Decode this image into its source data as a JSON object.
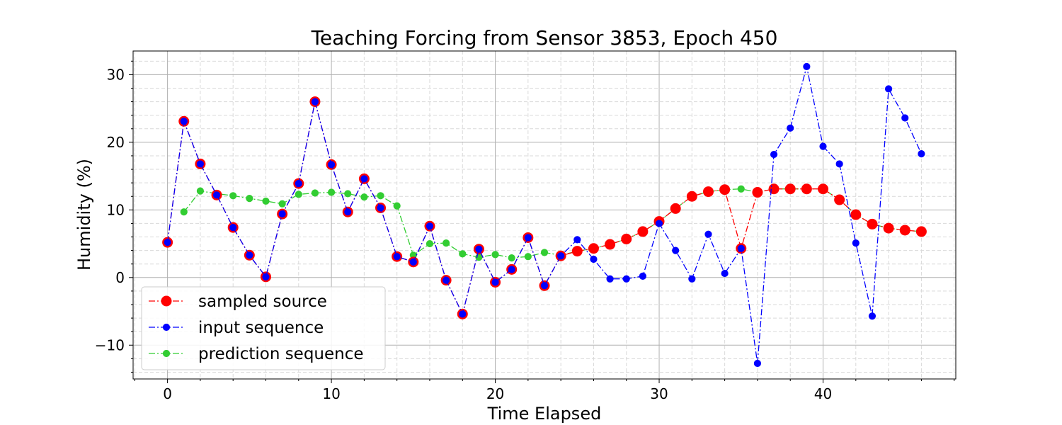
{
  "chart_data": {
    "type": "line",
    "title": "Teaching Forcing from Sensor 3853, Epoch 450",
    "xlabel": "Time Elapsed",
    "ylabel": "Humidity (%)",
    "xlim": [
      -2.1,
      48.1
    ],
    "ylim": [
      -15,
      33.5
    ],
    "xticks": [
      0,
      10,
      20,
      30,
      40
    ],
    "yticks": [
      -10,
      0,
      10,
      20,
      30
    ],
    "xtick_labels": [
      "0",
      "10",
      "20",
      "30",
      "40"
    ],
    "ytick_labels": [
      "−10",
      "0",
      "10",
      "20",
      "30"
    ],
    "grid": true,
    "minor_grid": true,
    "legend_position": "lower-left",
    "series": [
      {
        "name": "sampled source",
        "color": "#ff0000",
        "edge_color": "#ff0000",
        "marker_size": "large",
        "x": [
          0,
          1,
          2,
          3,
          4,
          5,
          6,
          7,
          8,
          9,
          10,
          11,
          12,
          13,
          14,
          15,
          16,
          17,
          18,
          19,
          20,
          21,
          22,
          23,
          24,
          25,
          26,
          27,
          28,
          29,
          30,
          31,
          32,
          33,
          34,
          35,
          36,
          37,
          38,
          39,
          40,
          41,
          42,
          43,
          44,
          45,
          46
        ],
        "values": [
          5.2,
          23.1,
          16.8,
          12.2,
          7.4,
          3.3,
          0.1,
          9.4,
          13.9,
          26.0,
          16.7,
          9.7,
          14.6,
          10.3,
          3.1,
          2.3,
          7.6,
          -0.4,
          -5.4,
          4.2,
          -0.7,
          1.2,
          5.9,
          -1.2,
          3.2,
          3.9,
          4.3,
          4.9,
          5.7,
          6.8,
          8.3,
          10.2,
          12.0,
          12.7,
          13.0,
          4.3,
          12.6,
          13.1,
          13.1,
          13.1,
          13.1,
          11.5,
          9.3,
          7.9,
          7.3,
          7.0,
          6.8
        ]
      },
      {
        "name": "input sequence",
        "color": "#0000ff",
        "x": [
          0,
          1,
          2,
          3,
          4,
          5,
          6,
          7,
          8,
          9,
          10,
          11,
          12,
          13,
          14,
          15,
          16,
          17,
          18,
          19,
          20,
          21,
          22,
          23,
          24,
          25,
          26,
          27,
          28,
          29,
          30,
          31,
          32,
          33,
          34,
          35,
          36,
          37,
          38,
          39,
          40,
          41,
          42,
          43,
          44,
          45,
          46
        ],
        "values": [
          5.2,
          23.1,
          16.8,
          12.2,
          7.4,
          3.3,
          0.1,
          9.4,
          13.9,
          26.0,
          16.7,
          9.7,
          14.6,
          10.3,
          3.1,
          2.3,
          7.6,
          -0.4,
          -5.4,
          4.2,
          -0.7,
          1.2,
          5.9,
          -1.2,
          3.2,
          5.6,
          2.7,
          -0.2,
          -0.2,
          0.2,
          8.0,
          4.0,
          -0.2,
          6.4,
          0.6,
          4.3,
          -12.7,
          18.2,
          22.1,
          31.2,
          19.4,
          16.8,
          5.1,
          -5.7,
          27.9,
          23.6,
          18.3
        ]
      },
      {
        "name": "prediction sequence",
        "color": "#32cd32",
        "x": [
          1,
          2,
          3,
          4,
          5,
          6,
          7,
          8,
          9,
          10,
          11,
          12,
          13,
          14,
          15,
          16,
          17,
          18,
          19,
          20,
          21,
          22,
          23,
          24,
          25,
          26,
          27,
          28,
          29,
          30,
          31,
          32,
          33,
          34,
          35,
          36,
          37,
          38,
          39,
          40,
          41,
          42,
          43,
          44,
          45,
          46
        ],
        "values": [
          9.7,
          12.8,
          12.4,
          12.1,
          11.7,
          11.3,
          10.9,
          12.3,
          12.5,
          12.6,
          12.4,
          11.9,
          12.1,
          10.6,
          3.3,
          5.0,
          5.1,
          3.5,
          3.0,
          3.4,
          2.9,
          3.1,
          3.7,
          3.3,
          3.9,
          4.3,
          4.9,
          5.7,
          6.8,
          8.3,
          10.2,
          12.0,
          12.7,
          13.0,
          13.1,
          12.6,
          13.1,
          13.1,
          13.1,
          13.1,
          11.5,
          9.3,
          7.9,
          7.3,
          7.0,
          6.8
        ]
      }
    ]
  }
}
